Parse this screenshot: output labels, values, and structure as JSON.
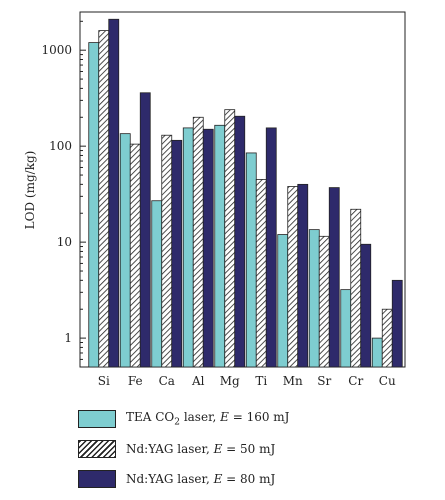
{
  "chart_data": {
    "type": "bar",
    "yscale": "log",
    "ylabel": "LOD (mg/kg)",
    "ylim": [
      0.5,
      2500
    ],
    "yticks": [
      1,
      10,
      100,
      1000
    ],
    "categories": [
      "Si",
      "Fe",
      "Ca",
      "Al",
      "Mg",
      "Ti",
      "Mn",
      "Sr",
      "Cr",
      "Cu"
    ],
    "series": [
      {
        "name": "TEA CO2 laser, E = 160 mJ",
        "color": "#7ecdd0",
        "pattern": "solid",
        "values": [
          1200,
          135,
          27,
          155,
          165,
          85,
          12,
          13.5,
          3.2,
          1.0
        ]
      },
      {
        "name": "Nd:YAG laser, E = 50 mJ",
        "color": "#222222",
        "pattern": "hatched",
        "values": [
          1600,
          105,
          130,
          200,
          240,
          45,
          38,
          11.5,
          22,
          2.0
        ]
      },
      {
        "name": "Nd:YAG laser, E = 80 mJ",
        "color": "#2e2a6b",
        "pattern": "solid",
        "values": [
          2100,
          360,
          115,
          150,
          205,
          155,
          40,
          37,
          9.5,
          4.0
        ]
      }
    ]
  },
  "legend": {
    "items": [
      {
        "pre": "TEA CO",
        "sub": "2",
        "post": " laser, ",
        "var": "E",
        "val": " = 160 mJ"
      },
      {
        "pre": "Nd:YAG laser, ",
        "sub": "",
        "post": "",
        "var": "E",
        "val": " = 50 mJ"
      },
      {
        "pre": "Nd:YAG laser, ",
        "sub": "",
        "post": "",
        "var": "E",
        "val": " = 80 mJ"
      }
    ]
  }
}
